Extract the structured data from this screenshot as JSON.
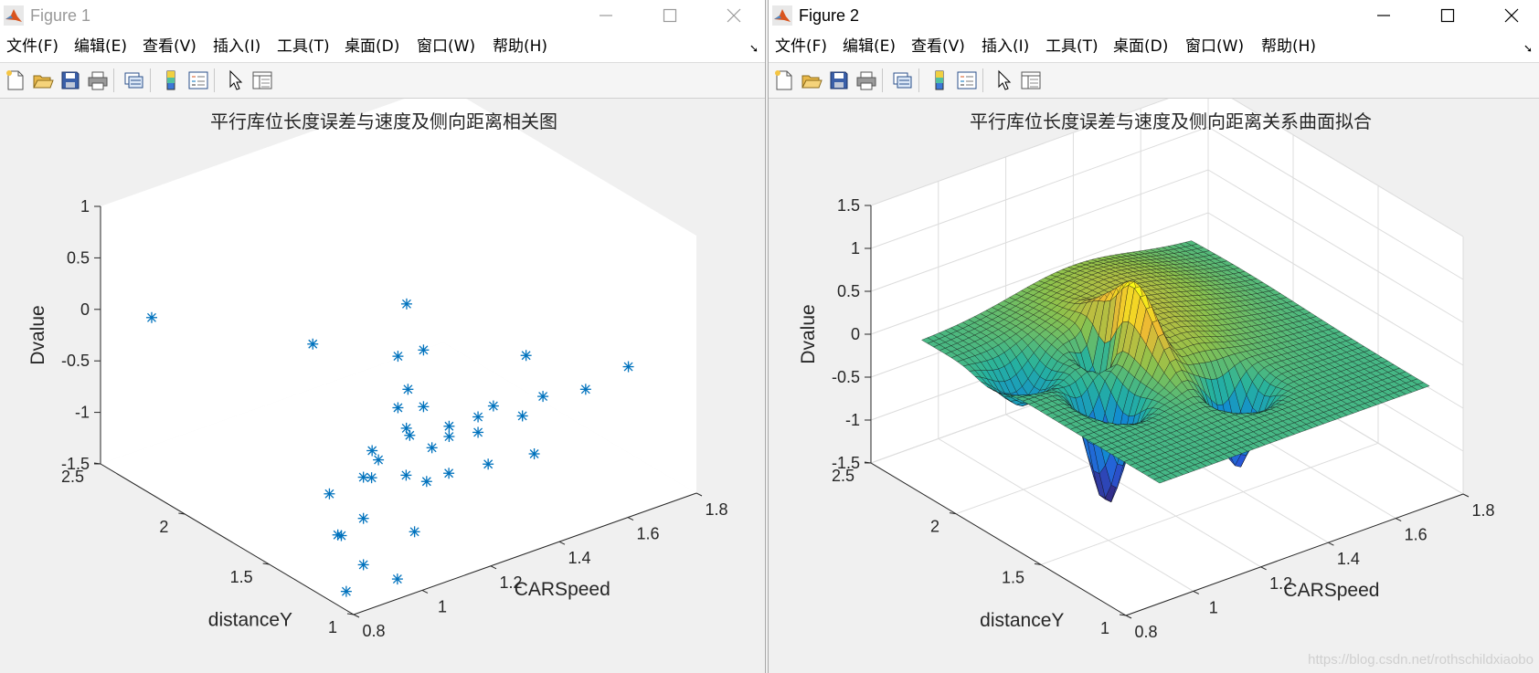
{
  "windows": [
    {
      "title": "Figure 1",
      "menu": [
        "文件(F)",
        "编辑(E)",
        "查看(V)",
        "插入(I)",
        "工具(T)",
        "桌面(D)",
        "窗口(W)",
        "帮助(H)"
      ],
      "toolbar_icons": [
        "new-figure-icon",
        "open-file-icon",
        "save-icon",
        "print-icon",
        "link-plot-icon",
        "insert-colorbar-icon",
        "insert-legend-icon",
        "edit-plot-arrow-icon",
        "property-inspector-icon"
      ]
    },
    {
      "title": "Figure 2",
      "menu": [
        "文件(F)",
        "编辑(E)",
        "查看(V)",
        "插入(I)",
        "工具(T)",
        "桌面(D)",
        "窗口(W)",
        "帮助(H)"
      ],
      "toolbar_icons": [
        "new-figure-icon",
        "open-file-icon",
        "save-icon",
        "print-icon",
        "link-plot-icon",
        "insert-colorbar-icon",
        "insert-legend-icon",
        "edit-plot-arrow-icon",
        "property-inspector-icon"
      ]
    }
  ],
  "watermark": "https://blog.csdn.net/rothschildxiaobo",
  "chart_data": [
    {
      "type": "scatter",
      "title": "平行库位长度误差与速度及侧向距离相关图",
      "xlabel": "CARSpeed",
      "ylabel": "distanceY",
      "zlabel": "Dvalue",
      "xlim": [
        0.8,
        1.8
      ],
      "ylim": [
        1,
        2.5
      ],
      "zlim": [
        -1.5,
        1
      ],
      "xticks": [
        "0.8",
        "1",
        "1.2",
        "1.4",
        "1.6",
        "1.8"
      ],
      "yticks": [
        "1",
        "1.5",
        "2",
        "2.5"
      ],
      "zticks": [
        "-1.5",
        "-1",
        "-0.5",
        "0",
        "0.5",
        "1"
      ],
      "grid": false,
      "marker": "*",
      "color": "#0072bd",
      "points": [
        {
          "x": 0.9,
          "y": 2.4,
          "z": -0.1
        },
        {
          "x": 1.05,
          "y": 1.75,
          "z": 0.1
        },
        {
          "x": 1.25,
          "y": 1.6,
          "z": 0.4
        },
        {
          "x": 1.25,
          "y": 1.5,
          "z": 0.05
        },
        {
          "x": 1.2,
          "y": 1.55,
          "z": 0.0
        },
        {
          "x": 1.18,
          "y": 1.45,
          "z": -0.2
        },
        {
          "x": 1.5,
          "y": 1.4,
          "z": -0.2
        },
        {
          "x": 1.7,
          "y": 1.2,
          "z": -0.35
        },
        {
          "x": 1.02,
          "y": 1.3,
          "z": -0.55
        },
        {
          "x": 1.0,
          "y": 1.3,
          "z": -0.7
        },
        {
          "x": 1.2,
          "y": 1.55,
          "z": -0.5
        },
        {
          "x": 1.25,
          "y": 1.5,
          "z": -0.5
        },
        {
          "x": 1.2,
          "y": 1.5,
          "z": -0.65
        },
        {
          "x": 1.2,
          "y": 1.48,
          "z": -0.7
        },
        {
          "x": 1.3,
          "y": 1.45,
          "z": -0.7
        },
        {
          "x": 1.38,
          "y": 1.35,
          "z": -0.5
        },
        {
          "x": 1.35,
          "y": 1.38,
          "z": -0.6
        },
        {
          "x": 1.5,
          "y": 1.3,
          "z": -0.5
        },
        {
          "x": 1.6,
          "y": 1.25,
          "z": -0.5
        },
        {
          "x": 1.45,
          "y": 1.32,
          "z": -0.65
        },
        {
          "x": 1.1,
          "y": 1.5,
          "z": -0.75
        },
        {
          "x": 1.3,
          "y": 1.45,
          "z": -0.8
        },
        {
          "x": 1.25,
          "y": 1.45,
          "z": -0.85
        },
        {
          "x": 1.35,
          "y": 1.38,
          "z": -0.75
        },
        {
          "x": 1.05,
          "y": 1.45,
          "z": -0.9
        },
        {
          "x": 1.15,
          "y": 1.4,
          "z": -0.95
        },
        {
          "x": 1.25,
          "y": 1.35,
          "z": -1.0
        },
        {
          "x": 1.35,
          "y": 1.32,
          "z": -1.0
        },
        {
          "x": 1.45,
          "y": 1.25,
          "z": -0.95
        },
        {
          "x": 1.2,
          "y": 1.38,
          "z": -1.05
        },
        {
          "x": 1.0,
          "y": 1.55,
          "z": -1.1
        },
        {
          "x": 1.05,
          "y": 1.45,
          "z": -1.3
        },
        {
          "x": 1.0,
          "y": 1.5,
          "z": -1.45
        },
        {
          "x": 1.02,
          "y": 1.52,
          "z": -1.5
        },
        {
          "x": 1.15,
          "y": 1.35,
          "z": -1.45
        },
        {
          "x": 1.05,
          "y": 1.45,
          "z": -1.75
        },
        {
          "x": 1.1,
          "y": 1.35,
          "z": -1.85
        },
        {
          "x": 1.0,
          "y": 1.45,
          "z": -1.95
        }
      ]
    },
    {
      "type": "surface",
      "title": "平行库位长度误差与速度及侧向距离关系曲面拟合",
      "xlabel": "CARSpeed",
      "ylabel": "distanceY",
      "zlabel": "Dvalue",
      "xlim": [
        0.8,
        1.8
      ],
      "ylim": [
        1,
        2.5
      ],
      "zlim": [
        -1.5,
        1.5
      ],
      "xticks": [
        "0.8",
        "1",
        "1.2",
        "1.4",
        "1.6",
        "1.8"
      ],
      "yticks": [
        "1",
        "1.5",
        "2",
        "2.5"
      ],
      "zticks": [
        "-1.5",
        "-1",
        "-0.5",
        "0",
        "0.5",
        "1",
        "1.5"
      ],
      "grid": true,
      "colormap": "parula",
      "surface_range": {
        "x": [
          0.9,
          1.7
        ],
        "y": [
          1.0,
          2.4
        ]
      },
      "features": [
        {
          "x": 1.22,
          "y": 1.8,
          "amplitude": 0.75,
          "sx": 0.03,
          "sy": 0.2
        },
        {
          "x": 1.07,
          "y": 1.65,
          "amplitude": -1.3,
          "sx": 0.05,
          "sy": 0.12
        },
        {
          "x": 1.33,
          "y": 1.4,
          "amplitude": -1.0,
          "sx": 0.06,
          "sy": 0.1
        },
        {
          "x": 1.0,
          "y": 2.0,
          "amplitude": -0.45,
          "sx": 0.08,
          "sy": 0.12
        },
        {
          "x": 1.17,
          "y": 1.9,
          "amplitude": -0.6,
          "sx": 0.04,
          "sy": 0.08
        },
        {
          "x": 1.3,
          "y": 1.7,
          "amplitude": 0.15,
          "sx": 0.1,
          "sy": 0.3
        }
      ]
    }
  ]
}
